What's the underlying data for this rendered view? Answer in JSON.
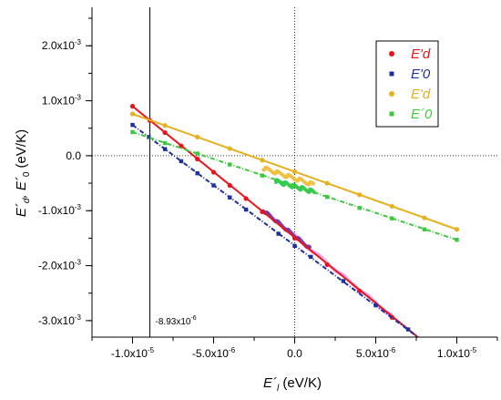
{
  "chart_data": {
    "type": "scatter",
    "xlabel": {
      "main": "E´",
      "sub": "l",
      "rest": " (eV/K)"
    },
    "ylabel": {
      "main": "E´",
      "sub": "d",
      "mid": ", E´",
      "sub2": "0",
      "rest": " (eV/K)"
    },
    "xlim": [
      -1.25e-05,
      1.25e-05
    ],
    "ylim": [
      -0.0033,
      0.0027
    ],
    "x_ticks": [
      {
        "value": -1e-05,
        "base": "-1.0x10",
        "exp": "-5"
      },
      {
        "value": -5e-06,
        "base": "-5.0x10",
        "exp": "-6"
      },
      {
        "value": 0,
        "base": "0.0",
        "exp": ""
      },
      {
        "value": 5e-06,
        "base": "5.0x10",
        "exp": "-6"
      },
      {
        "value": 1e-05,
        "base": "1.0x10",
        "exp": "-5"
      }
    ],
    "y_ticks": [
      {
        "value": 0.002,
        "base": "2.0x10",
        "exp": "-3"
      },
      {
        "value": 0.001,
        "base": "1.0x10",
        "exp": "-3"
      },
      {
        "value": 0,
        "base": "0.0",
        "exp": ""
      },
      {
        "value": -0.001,
        "base": "-1.0x10",
        "exp": "-3"
      },
      {
        "value": -0.002,
        "base": "-2.0x10",
        "exp": "-3"
      },
      {
        "value": -0.003,
        "base": "-3.0x10",
        "exp": "-3"
      }
    ],
    "reference_lines": {
      "x_solid": -8.93e-06,
      "x_dotted": 0,
      "y_dotted": 0
    },
    "annotation": {
      "base": "-8.93x10",
      "exp": "-6",
      "x": -8.93e-06,
      "y": -0.003
    },
    "series": [
      {
        "name": "E'd",
        "color": "#e8141c",
        "marker": "circle",
        "line_style": "solid",
        "x_range": [
          -1e-05,
          7.6e-06
        ],
        "y_range": [
          0.0009,
          -0.0033
        ],
        "points": [
          {
            "x": -1e-05,
            "y": 0.0009
          },
          {
            "x": -8.93e-06,
            "y": 0.00064
          },
          {
            "x": -8e-06,
            "y": 0.00042
          },
          {
            "x": -7e-06,
            "y": 0.00018
          },
          {
            "x": -6e-06,
            "y": -6e-05
          },
          {
            "x": -5e-06,
            "y": -0.0003
          },
          {
            "x": -4e-06,
            "y": -0.00054
          },
          {
            "x": -3e-06,
            "y": -0.00078
          },
          {
            "x": -2e-06,
            "y": -0.00102
          },
          {
            "x": 0,
            "y": -0.0015
          },
          {
            "x": 2e-06,
            "y": -0.00198
          },
          {
            "x": 4e-06,
            "y": -0.00246
          },
          {
            "x": 6e-06,
            "y": -0.00294
          }
        ]
      },
      {
        "name": "E'0",
        "color": "#1c2f9c",
        "marker": "square",
        "line_style": "dashdot",
        "x_range": [
          -1e-05,
          7.6e-06
        ],
        "y_range": [
          0.00056,
          -0.0033
        ],
        "points": [
          {
            "x": -1e-05,
            "y": 0.00056
          },
          {
            "x": -9e-06,
            "y": 0.00034
          },
          {
            "x": -8e-06,
            "y": 0.00012
          },
          {
            "x": -7e-06,
            "y": -0.0001
          },
          {
            "x": -6e-06,
            "y": -0.00032
          },
          {
            "x": -5e-06,
            "y": -0.00054
          },
          {
            "x": -4e-06,
            "y": -0.00076
          },
          {
            "x": -3e-06,
            "y": -0.00098
          },
          {
            "x": -1e-06,
            "y": -0.00142
          },
          {
            "x": 0,
            "y": -0.00164
          },
          {
            "x": 1e-06,
            "y": -0.00184
          },
          {
            "x": 3e-06,
            "y": -0.00228
          },
          {
            "x": 5e-06,
            "y": -0.00272
          },
          {
            "x": 7e-06,
            "y": -0.00316
          }
        ]
      },
      {
        "name": "E'd",
        "color": "#e6b01e",
        "marker": "circle",
        "line_style": "solid",
        "x_range": [
          -1e-05,
          1e-05
        ],
        "y_range": [
          0.00076,
          -0.00134
        ],
        "points": [
          {
            "x": -1e-05,
            "y": 0.00076
          },
          {
            "x": -8e-06,
            "y": 0.00055
          },
          {
            "x": -6e-06,
            "y": 0.00034
          },
          {
            "x": -4e-06,
            "y": 0.00013
          },
          {
            "x": -2e-06,
            "y": -8e-05
          },
          {
            "x": 0,
            "y": -0.00029
          },
          {
            "x": 2e-06,
            "y": -0.0005
          },
          {
            "x": 4e-06,
            "y": -0.00071
          },
          {
            "x": 6e-06,
            "y": -0.00092
          },
          {
            "x": 8e-06,
            "y": -0.00113
          },
          {
            "x": 1e-05,
            "y": -0.00134
          }
        ]
      },
      {
        "name": "E´0",
        "color": "#3ec83e",
        "marker": "square",
        "line_style": "dashdot",
        "x_range": [
          -1e-05,
          1e-05
        ],
        "y_range": [
          0.00043,
          -0.00153
        ],
        "points": [
          {
            "x": -1e-05,
            "y": 0.00043
          },
          {
            "x": -8e-06,
            "y": 0.00023
          },
          {
            "x": -6e-06,
            "y": 4e-05
          },
          {
            "x": -4e-06,
            "y": -0.00016
          },
          {
            "x": -2e-06,
            "y": -0.00036
          },
          {
            "x": 0,
            "y": -0.00055
          },
          {
            "x": 2e-06,
            "y": -0.00075
          },
          {
            "x": 4e-06,
            "y": -0.00095
          },
          {
            "x": 6e-06,
            "y": -0.00114
          },
          {
            "x": 8e-06,
            "y": -0.00134
          },
          {
            "x": 1e-05,
            "y": -0.00153
          }
        ]
      }
    ],
    "point_clusters": [
      {
        "color": "#ff9ee8",
        "x_range": [
          -1e-06,
          6e-06
        ],
        "y_range": [
          -0.00122,
          -0.00292
        ]
      },
      {
        "color": "#7a3aa0",
        "x_range": [
          -2e-06,
          1e-06
        ],
        "y_range": [
          -0.00098,
          -0.0017
        ]
      },
      {
        "color": "#f0c040",
        "x_range": [
          -2e-06,
          1.2e-06
        ],
        "y_range": [
          -0.00022,
          -0.00053
        ]
      },
      {
        "color": "#33cc55",
        "x_range": [
          -1.2e-06,
          1.2e-06
        ],
        "y_range": [
          -0.00046,
          -0.00066
        ]
      }
    ],
    "legend": {
      "position": "top-right"
    }
  }
}
